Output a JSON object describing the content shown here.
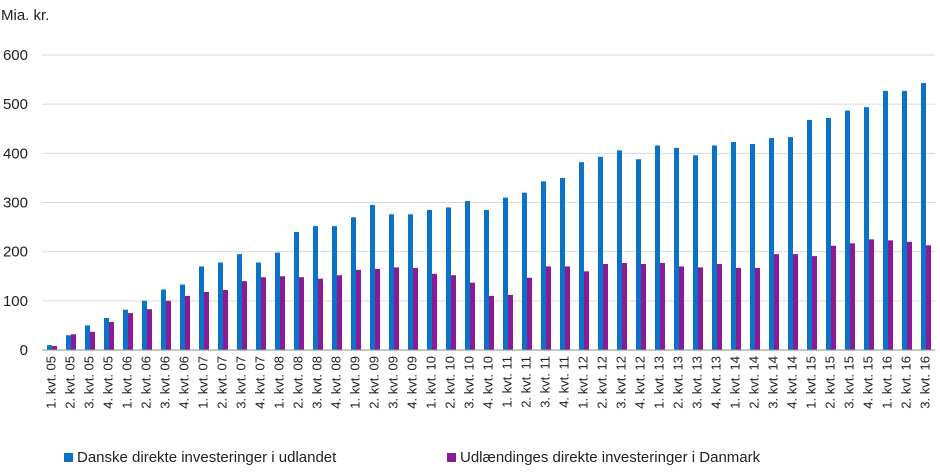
{
  "chart_data": {
    "type": "bar",
    "unit_label": "Mia. kr.",
    "ylim": [
      0,
      600
    ],
    "yticks": [
      0,
      100,
      200,
      300,
      400,
      500,
      600
    ],
    "grid": true,
    "legend_position": "bottom",
    "categories": [
      "1. kvt. 05",
      "2. kvt. 05",
      "3. kvt. 05",
      "4. kvt. 05",
      "1. kvt. 06",
      "2. kvt. 06",
      "3. kvt. 06",
      "4. kvt. 06",
      "1. kvt. 07",
      "2. kvt. 07",
      "3. kvt. 07",
      "4. kvt. 07",
      "1. kvt. 08",
      "2. kvt. 08",
      "3. kvt. 08",
      "4. kvt. 08",
      "1. kvt. 09",
      "2. kvt. 09",
      "3. kvt. 09",
      "4. kvt. 09",
      "1. kvt. 10",
      "2. kvt. 10",
      "3. kvt. 10",
      "4. kvt. 10",
      "1. kvt. 11",
      "2. kvt. 11",
      "3. kvt. 11",
      "4. kvt. 11",
      "1. kvt. 12",
      "2. kvt. 12",
      "3. kvt. 12",
      "4. kvt. 12",
      "1. kvt. 13",
      "2. kvt. 13",
      "3. kvt. 13",
      "4. kvt. 13",
      "1. kvt. 14",
      "2. kvt. 14",
      "3. kvt. 14",
      "4. kvt. 14",
      "1. kvt. 15",
      "2. kvt. 15",
      "3. kvt. 15",
      "4. kvt. 15",
      "1. kvt. 16",
      "2. kvt. 16",
      "3. kvt. 16"
    ],
    "series": [
      {
        "name": "Danske direkte investeringer i udlandet",
        "color": "#0a73c8",
        "values": [
          10,
          30,
          50,
          65,
          82,
          100,
          123,
          133,
          170,
          178,
          195,
          178,
          198,
          240,
          252,
          252,
          270,
          295,
          276,
          276,
          285,
          290,
          303,
          285,
          310,
          320,
          343,
          350,
          382,
          393,
          406,
          388,
          416,
          411,
          396,
          416,
          423,
          419,
          431,
          433,
          468,
          472,
          487,
          494,
          527,
          527,
          543
        ]
      },
      {
        "name": "Udlændinges direkte investeringer i Danmark",
        "color": "#8c1a96",
        "values": [
          8,
          32,
          37,
          57,
          75,
          83,
          100,
          110,
          118,
          122,
          140,
          148,
          150,
          148,
          145,
          152,
          163,
          165,
          168,
          167,
          155,
          152,
          137,
          110,
          112,
          147,
          170,
          170,
          160,
          175,
          177,
          175,
          177,
          170,
          168,
          175,
          167,
          167,
          195,
          195,
          191,
          212,
          217,
          225,
          223,
          220,
          213
        ]
      }
    ]
  }
}
